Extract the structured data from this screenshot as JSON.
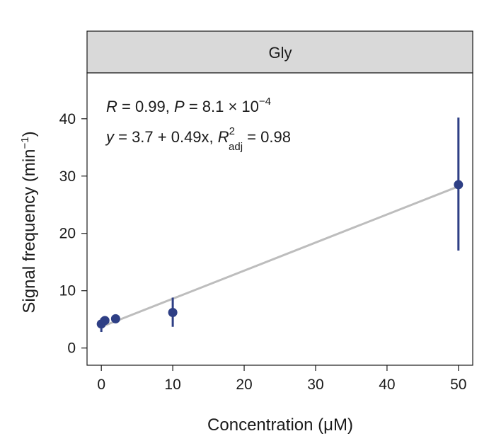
{
  "chart_data": {
    "type": "scatter",
    "panel_label": "Gly",
    "xlabel": "Concentration (μM)",
    "ylabel_main": "Signal frequency (min",
    "ylabel_sup": "−1",
    "ylabel_end": ")",
    "xlim": [
      -2,
      52
    ],
    "ylim": [
      -3,
      48
    ],
    "xticks": [
      0,
      10,
      20,
      30,
      40,
      50
    ],
    "yticks": [
      0,
      10,
      20,
      30,
      40
    ],
    "grid": false,
    "colors": {
      "points": "#2e3f85",
      "fit_line": "#bdbdbd",
      "strip": "#d9d9d9"
    },
    "points": [
      {
        "x": 0,
        "y": 4.2,
        "err_low": 2.8,
        "err_high": 5.2
      },
      {
        "x": 0.5,
        "y": 4.8,
        "err_low": 4.2,
        "err_high": 5.4
      },
      {
        "x": 2,
        "y": 5.1,
        "err_low": 4.9,
        "err_high": 5.3
      },
      {
        "x": 10,
        "y": 6.2,
        "err_low": 3.7,
        "err_high": 8.8
      },
      {
        "x": 50,
        "y": 28.5,
        "err_low": 17,
        "err_high": 40.2
      }
    ],
    "fit": {
      "intercept": 3.7,
      "slope": 0.49,
      "x_range": [
        0,
        50
      ]
    },
    "annotation": {
      "line1": {
        "r_sym": "R",
        "r_val": " = 0.99, ",
        "p_sym": "P",
        "p_val": " = 8.1 × 10",
        "p_exp": "−4"
      },
      "line2": {
        "y_sym": "y",
        "eq": " = 3.7 + 0.49x, ",
        "r_sym": "R",
        "r_sup": "2",
        "r_sub": "adj",
        "r2_val": " = 0.98"
      }
    }
  }
}
